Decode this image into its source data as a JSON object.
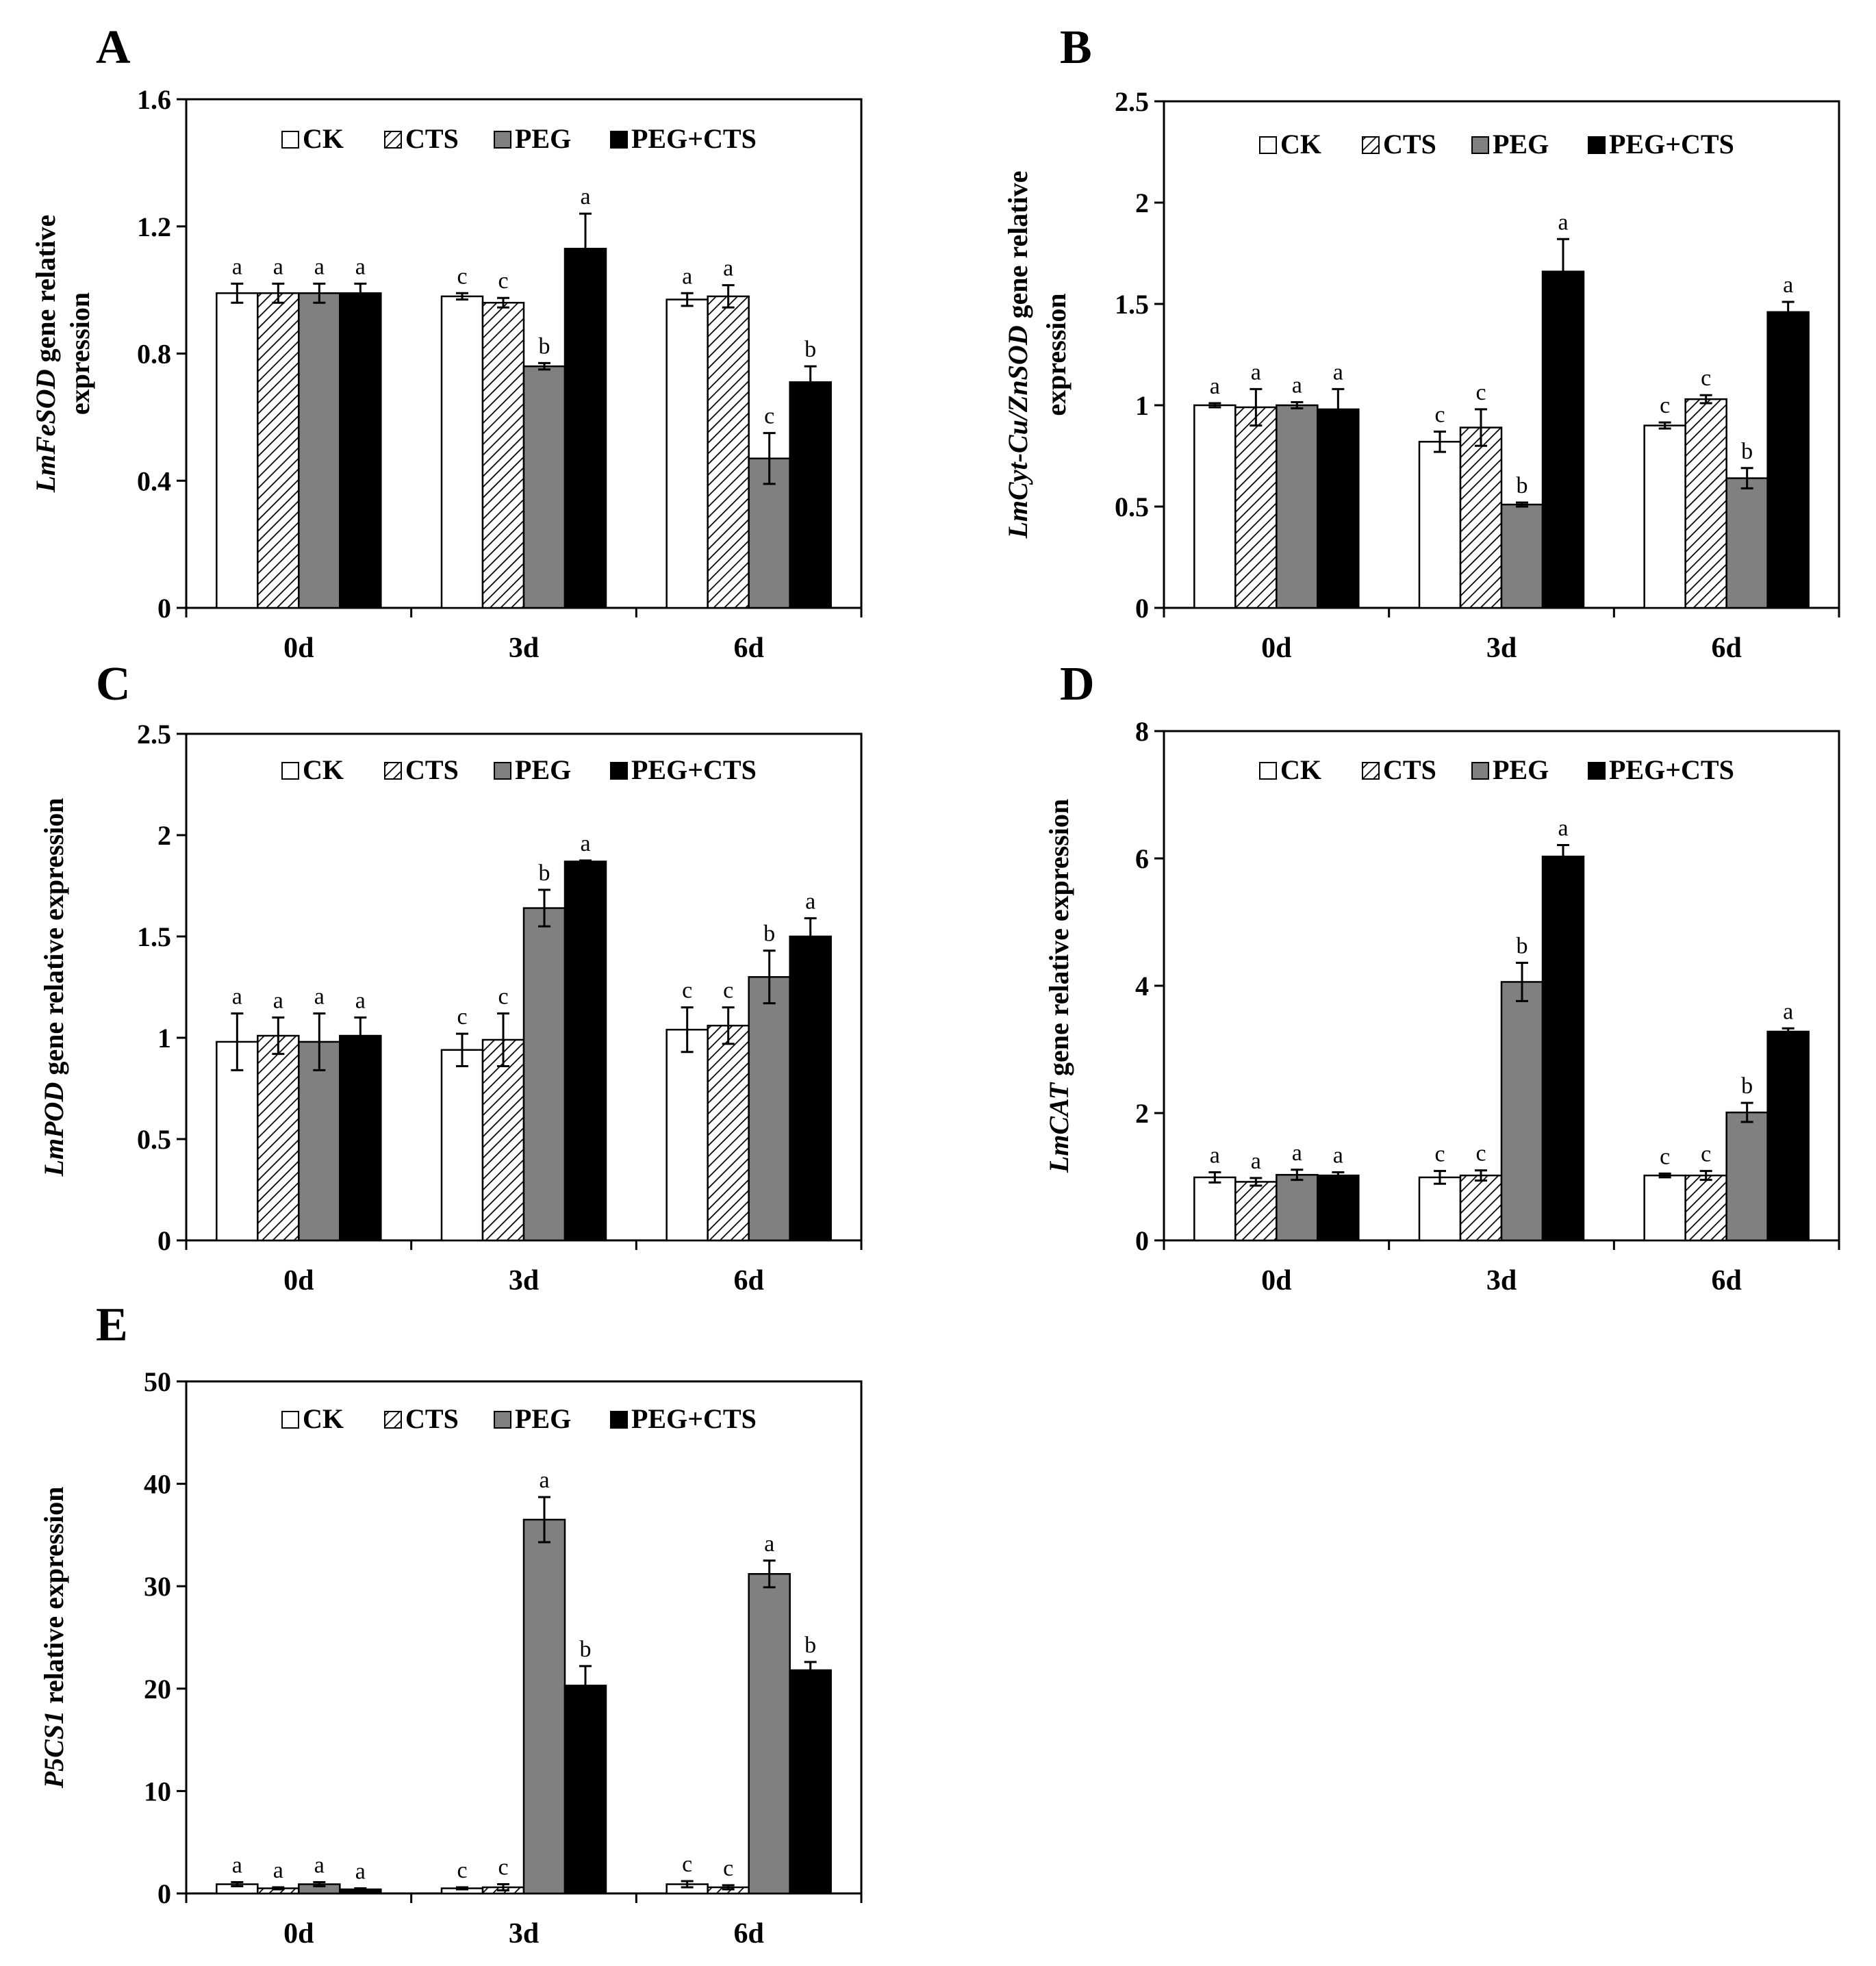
{
  "colors": {
    "CK": "#ffffff",
    "CTS": "hatched",
    "PEG": "#808080",
    "PEG+CTS": "#000000",
    "axis": "#000000"
  },
  "chart_data": [
    {
      "type": "bar",
      "panel": "A",
      "ylabel": {
        "gene": "LmFeSOD",
        "rest": " gene relative",
        "line2": "expression"
      },
      "ylim": [
        0,
        1.6
      ],
      "yticks": [
        "0",
        "0.4",
        "0.8",
        "1.2",
        "1.6"
      ],
      "categories": [
        "0d",
        "3d",
        "6d"
      ],
      "legend": [
        "CK",
        "CTS",
        "PEG",
        "PEG+CTS"
      ],
      "series": [
        {
          "name": "CK",
          "values": [
            0.99,
            0.98,
            0.97
          ],
          "errors": [
            0.03,
            0.01,
            0.02
          ],
          "letters": [
            "a",
            "c",
            "a"
          ]
        },
        {
          "name": "CTS",
          "values": [
            0.99,
            0.96,
            0.98
          ],
          "errors": [
            0.03,
            0.015,
            0.035
          ],
          "letters": [
            "a",
            "c",
            "a"
          ]
        },
        {
          "name": "PEG",
          "values": [
            0.99,
            0.76,
            0.47
          ],
          "errors": [
            0.03,
            0.01,
            0.08
          ],
          "letters": [
            "a",
            "b",
            "c"
          ]
        },
        {
          "name": "PEG+CTS",
          "values": [
            0.99,
            1.13,
            0.71
          ],
          "errors": [
            0.03,
            0.11,
            0.05
          ],
          "letters": [
            "a",
            "a",
            "b"
          ]
        }
      ]
    },
    {
      "type": "bar",
      "panel": "B",
      "ylabel": {
        "gene": "LmCyt-Cu/ZnSOD",
        "rest": " gene relative",
        "line2": "expression"
      },
      "ylim": [
        0,
        2.5
      ],
      "yticks": [
        "0",
        "0.5",
        "1",
        "1.5",
        "2",
        "2.5"
      ],
      "categories": [
        "0d",
        "3d",
        "6d"
      ],
      "legend": [
        "CK",
        "CTS",
        "PEG",
        "PEG+CTS"
      ],
      "series": [
        {
          "name": "CK",
          "values": [
            1.0,
            0.82,
            0.9
          ],
          "errors": [
            0.01,
            0.05,
            0.015
          ],
          "letters": [
            "a",
            "c",
            "c"
          ]
        },
        {
          "name": "CTS",
          "values": [
            0.99,
            0.89,
            1.03
          ],
          "errors": [
            0.09,
            0.09,
            0.02
          ],
          "letters": [
            "a",
            "c",
            "c"
          ]
        },
        {
          "name": "PEG",
          "values": [
            1.0,
            0.51,
            0.64
          ],
          "errors": [
            0.015,
            0.01,
            0.05
          ],
          "letters": [
            "a",
            "b",
            "b"
          ]
        },
        {
          "name": "PEG+CTS",
          "values": [
            0.98,
            1.66,
            1.46
          ],
          "errors": [
            0.1,
            0.16,
            0.05
          ],
          "letters": [
            "a",
            "a",
            "a"
          ]
        }
      ]
    },
    {
      "type": "bar",
      "panel": "C",
      "ylabel": {
        "gene": "LmPOD",
        "rest": " gene relative expression",
        "line2": ""
      },
      "ylim": [
        0,
        2.5
      ],
      "yticks": [
        "0",
        "0.5",
        "1",
        "1.5",
        "2",
        "2.5"
      ],
      "categories": [
        "0d",
        "3d",
        "6d"
      ],
      "legend": [
        "CK",
        "CTS",
        "PEG",
        "PEG+CTS"
      ],
      "series": [
        {
          "name": "CK",
          "values": [
            0.98,
            0.94,
            1.04
          ],
          "errors": [
            0.14,
            0.08,
            0.11
          ],
          "letters": [
            "a",
            "c",
            "c"
          ]
        },
        {
          "name": "CTS",
          "values": [
            1.01,
            0.99,
            1.06
          ],
          "errors": [
            0.09,
            0.13,
            0.09
          ],
          "letters": [
            "a",
            "c",
            "c"
          ]
        },
        {
          "name": "PEG",
          "values": [
            0.98,
            1.64,
            1.3
          ],
          "errors": [
            0.14,
            0.09,
            0.13
          ],
          "letters": [
            "a",
            "b",
            "b"
          ]
        },
        {
          "name": "PEG+CTS",
          "values": [
            1.01,
            1.87,
            1.5
          ],
          "errors": [
            0.09,
            0.005,
            0.09
          ],
          "letters": [
            "a",
            "a",
            "a"
          ]
        }
      ]
    },
    {
      "type": "bar",
      "panel": "D",
      "ylabel": {
        "gene": "LmCAT",
        "rest": " gene relative  expression",
        "line2": ""
      },
      "ylim": [
        0,
        8
      ],
      "yticks": [
        "0",
        "2",
        "4",
        "6",
        "8"
      ],
      "categories": [
        "0d",
        "3d",
        "6d"
      ],
      "legend": [
        "CK",
        "CTS",
        "PEG",
        "PEG+CTS"
      ],
      "series": [
        {
          "name": "CK",
          "values": [
            0.99,
            0.99,
            1.02
          ],
          "errors": [
            0.08,
            0.1,
            0.03
          ],
          "letters": [
            "a",
            "c",
            "c"
          ]
        },
        {
          "name": "CTS",
          "values": [
            0.92,
            1.02,
            1.02
          ],
          "errors": [
            0.06,
            0.08,
            0.07
          ],
          "letters": [
            "a",
            "c",
            "c"
          ]
        },
        {
          "name": "PEG",
          "values": [
            1.03,
            4.06,
            2.01
          ],
          "errors": [
            0.08,
            0.3,
            0.15
          ],
          "letters": [
            "a",
            "b",
            "b"
          ]
        },
        {
          "name": "PEG+CTS",
          "values": [
            1.02,
            6.03,
            3.28
          ],
          "errors": [
            0.05,
            0.18,
            0.05
          ],
          "letters": [
            "a",
            "a",
            "a"
          ]
        }
      ]
    },
    {
      "type": "bar",
      "panel": "E",
      "ylabel": {
        "gene": "P5CS1",
        "rest": " relative expression",
        "line2": ""
      },
      "ylim": [
        0,
        50
      ],
      "yticks": [
        "0",
        "10",
        "20",
        "30",
        "40",
        "50"
      ],
      "categories": [
        "0d",
        "3d",
        "6d"
      ],
      "legend": [
        "CK",
        "CTS",
        "PEG",
        "PEG+CTS"
      ],
      "series": [
        {
          "name": "CK",
          "values": [
            0.9,
            0.5,
            0.9
          ],
          "errors": [
            0.2,
            0.1,
            0.3
          ],
          "letters": [
            "a",
            "c",
            "c"
          ]
        },
        {
          "name": "CTS",
          "values": [
            0.5,
            0.6,
            0.6
          ],
          "errors": [
            0.1,
            0.3,
            0.2
          ],
          "letters": [
            "a",
            "c",
            "c"
          ]
        },
        {
          "name": "PEG",
          "values": [
            0.9,
            36.5,
            31.2
          ],
          "errors": [
            0.2,
            2.2,
            1.3
          ],
          "letters": [
            "a",
            "a",
            "a"
          ]
        },
        {
          "name": "PEG+CTS",
          "values": [
            0.4,
            20.3,
            21.8
          ],
          "errors": [
            0.1,
            1.9,
            0.8
          ],
          "letters": [
            "a",
            "b",
            "b"
          ]
        }
      ]
    }
  ]
}
